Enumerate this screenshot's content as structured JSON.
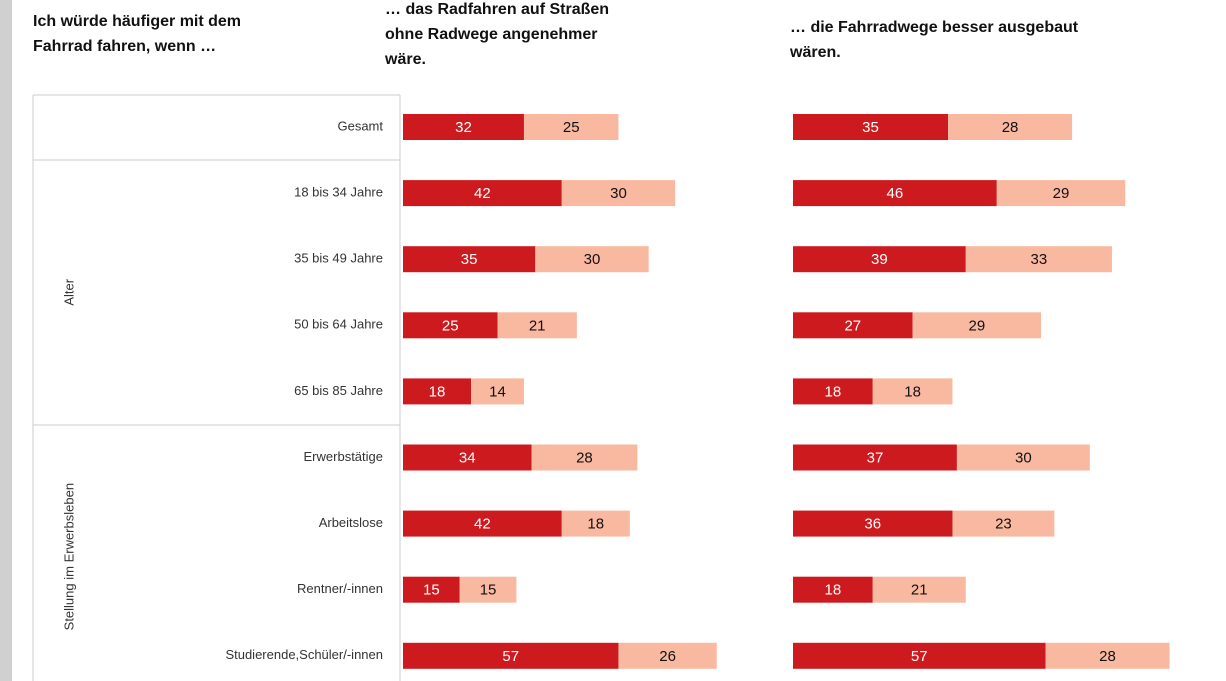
{
  "question": [
    "Ich würde häufiger mit dem",
    "Fahrrad fahren, wenn …"
  ],
  "groups": [
    {
      "label": "Alter",
      "first": 1,
      "last": 4
    },
    {
      "label": "Stellung im Erwerbsleben",
      "first": 5,
      "last": 8
    }
  ],
  "chart_data": [
    {
      "type": "bar",
      "stacked": true,
      "orientation": "horizontal",
      "title": [
        "… das Radfahren auf Straßen",
        "ohne Radwege angenehmer",
        "wäre."
      ],
      "categories": [
        "Gesamt",
        "18 bis 34 Jahre",
        "35 bis 49 Jahre",
        "50 bis 64 Jahre",
        "65 bis 85 Jahre",
        "Erwerbstätige",
        "Arbeitslose",
        "Rentner/-innen",
        "Studierende,Schüler/-innen"
      ],
      "series": [
        {
          "color": "#cc1a1f",
          "values": [
            32,
            42,
            35,
            25,
            18,
            34,
            42,
            15,
            57
          ]
        },
        {
          "color": "#f8b9a0",
          "values": [
            25,
            30,
            30,
            21,
            14,
            28,
            18,
            15,
            26
          ]
        }
      ]
    },
    {
      "type": "bar",
      "stacked": true,
      "orientation": "horizontal",
      "title": [
        "… die Fahrradwege besser ausgebaut",
        "wären."
      ],
      "series": [
        {
          "color": "#cc1a1f",
          "values": [
            35,
            46,
            39,
            27,
            18,
            37,
            36,
            18,
            57
          ]
        },
        {
          "color": "#f8b9a0",
          "values": [
            28,
            29,
            33,
            29,
            18,
            30,
            23,
            21,
            28
          ]
        }
      ]
    }
  ]
}
